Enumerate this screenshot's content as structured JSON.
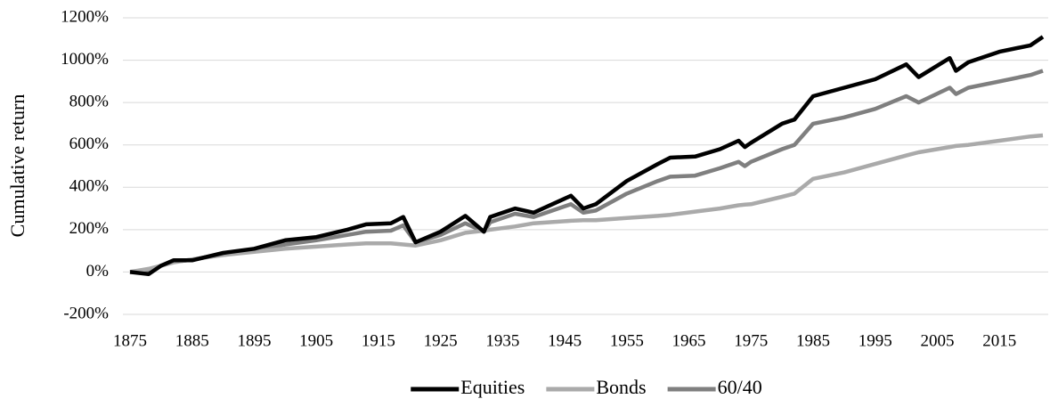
{
  "chart_data": {
    "type": "line",
    "ylabel": "Cumulative return",
    "x": [
      1875,
      1878,
      1880,
      1882,
      1885,
      1890,
      1895,
      1900,
      1905,
      1910,
      1913,
      1917,
      1919,
      1921,
      1925,
      1929,
      1932,
      1933,
      1937,
      1940,
      1946,
      1948,
      1950,
      1955,
      1960,
      1962,
      1966,
      1970,
      1973,
      1974,
      1975,
      1980,
      1982,
      1985,
      1990,
      1995,
      2000,
      2002,
      2007,
      2008,
      2010,
      2015,
      2020,
      2022
    ],
    "series": [
      {
        "name": "Equities",
        "color": "#000000",
        "values": [
          0,
          -10,
          30,
          55,
          55,
          90,
          110,
          150,
          165,
          200,
          225,
          230,
          260,
          140,
          190,
          265,
          190,
          260,
          300,
          280,
          360,
          300,
          320,
          430,
          510,
          540,
          545,
          580,
          620,
          590,
          610,
          700,
          720,
          830,
          870,
          910,
          980,
          920,
          1010,
          950,
          990,
          1040,
          1070,
          1110
        ]
      },
      {
        "name": "Bonds",
        "color": "#aaaaaa",
        "values": [
          0,
          15,
          30,
          45,
          60,
          80,
          95,
          110,
          120,
          130,
          135,
          135,
          130,
          125,
          150,
          185,
          195,
          200,
          215,
          230,
          242,
          245,
          245,
          255,
          265,
          270,
          285,
          300,
          315,
          318,
          320,
          355,
          370,
          440,
          470,
          510,
          550,
          565,
          590,
          595,
          600,
          620,
          640,
          645
        ]
      },
      {
        "name": "60/40",
        "color": "#7f7f7f",
        "values": [
          0,
          5,
          30,
          48,
          58,
          85,
          105,
          130,
          150,
          175,
          190,
          195,
          220,
          140,
          175,
          230,
          190,
          235,
          275,
          260,
          320,
          280,
          290,
          370,
          430,
          450,
          455,
          490,
          520,
          500,
          520,
          580,
          600,
          700,
          730,
          770,
          830,
          800,
          870,
          840,
          870,
          900,
          930,
          950
        ]
      }
    ],
    "xlim": [
      1875,
      2022
    ],
    "xticks": [
      1875,
      1885,
      1895,
      1905,
      1915,
      1925,
      1935,
      1945,
      1955,
      1965,
      1975,
      1985,
      1995,
      2005,
      2015
    ],
    "ylim": [
      -200,
      1200
    ],
    "yticks": [
      {
        "value": -200,
        "label": "-200%"
      },
      {
        "value": 0,
        "label": "0%"
      },
      {
        "value": 200,
        "label": "200%"
      },
      {
        "value": 400,
        "label": "400%"
      },
      {
        "value": 600,
        "label": "600%"
      },
      {
        "value": 800,
        "label": "800%"
      },
      {
        "value": 1000,
        "label": "1000%"
      },
      {
        "value": 1200,
        "label": "1200%"
      }
    ],
    "grid": true,
    "legend": "bottom"
  }
}
